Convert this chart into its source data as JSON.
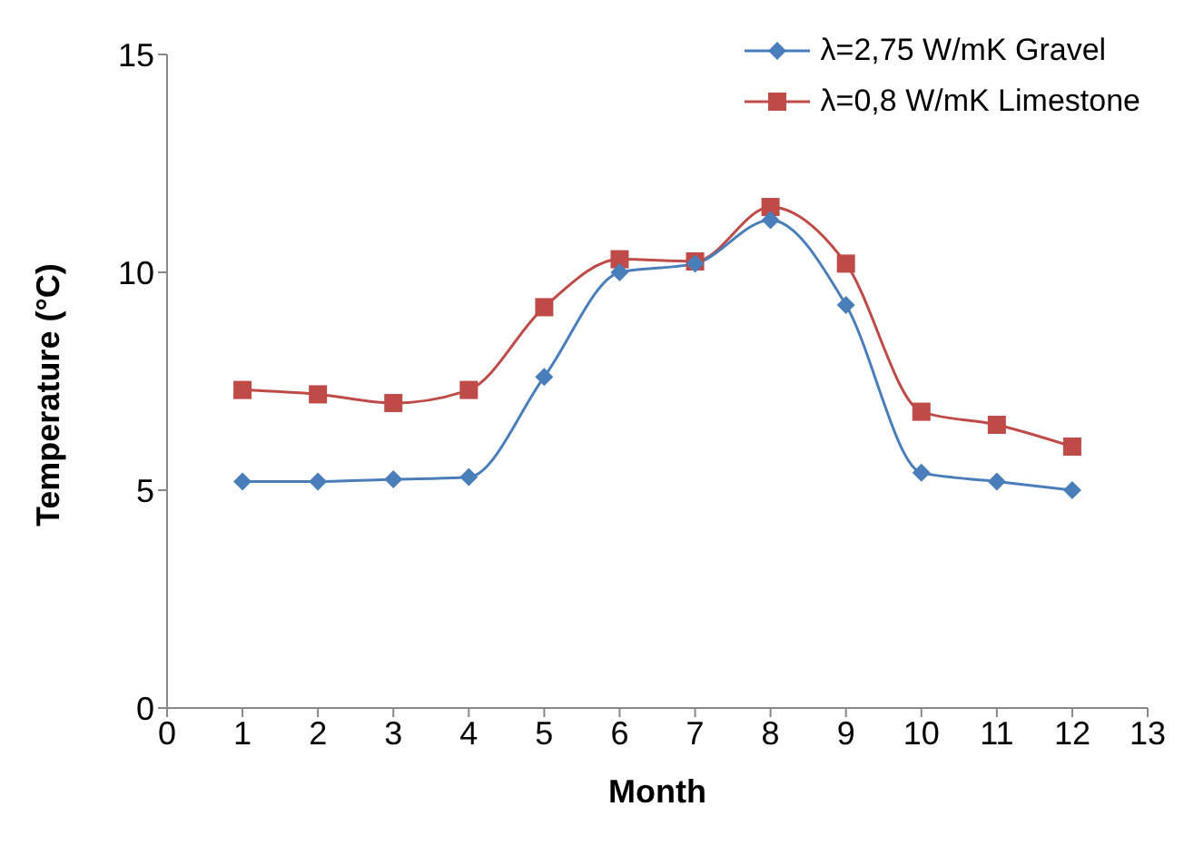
{
  "chart_data": {
    "type": "line",
    "xlabel": "Month",
    "ylabel": "Temperature (°C)",
    "x": [
      1,
      2,
      3,
      4,
      5,
      6,
      7,
      8,
      9,
      10,
      11,
      12
    ],
    "series": [
      {
        "name": "λ=2,75 W/mK Gravel",
        "color": "#4a7ebb",
        "marker": "diamond",
        "values": [
          5.2,
          5.2,
          5.25,
          5.3,
          7.6,
          10.0,
          10.2,
          11.2,
          9.25,
          5.4,
          5.2,
          5.0
        ]
      },
      {
        "name": "λ=0,8 W/mK Limestone",
        "color": "#be4b48",
        "marker": "square",
        "values": [
          7.3,
          7.2,
          7.0,
          7.3,
          9.2,
          10.3,
          10.25,
          11.5,
          10.2,
          6.8,
          6.5,
          6.0
        ]
      }
    ],
    "xlim": [
      0,
      13
    ],
    "xticks": [
      0,
      1,
      2,
      3,
      4,
      5,
      6,
      7,
      8,
      9,
      10,
      11,
      12,
      13
    ],
    "ylim": [
      0,
      15
    ],
    "yticks": [
      0,
      5,
      10,
      15
    ],
    "grid": false,
    "legend": "top right",
    "line_style": "solid"
  }
}
